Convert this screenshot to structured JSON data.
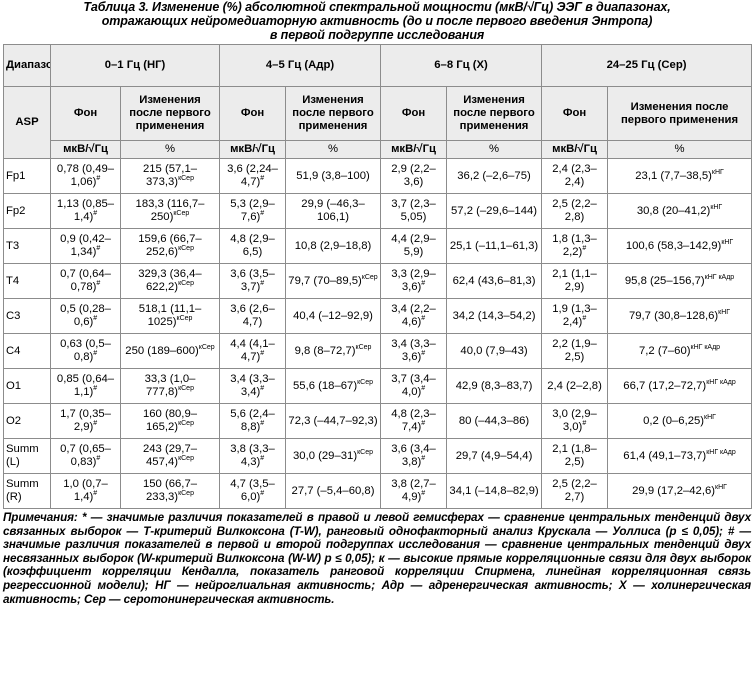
{
  "caption": {
    "line1": "Таблица 3. Изменение (%) абсолютной спектральной мощности (мкВ/√Гц) ЭЭГ в диапазонах,",
    "line2": "отражающих нейромедиаторную активность (до и после первого введения Энтропа)",
    "line3": "в первой подгруппе исследования"
  },
  "header": {
    "range": "Диапазон",
    "asp": "ASP",
    "bands": [
      "0–1 Гц (НГ)",
      "4–5 Гц (Адр)",
      "6–8 Гц (Х)",
      "24–25 Гц (Сер)"
    ],
    "fon": "Фон",
    "change_labels": [
      "Изменения после первого применения",
      "Изменения после первого применения",
      "Изменения после первого применения",
      "Изменения после первого применения"
    ],
    "unit_abs": "мкВ/√Гц",
    "unit_pct": "%"
  },
  "rows": [
    {
      "asp": "Fp1",
      "c": [
        {
          "t": "0,78 (0,49–1,06)",
          "s": "#"
        },
        {
          "t": "215 (57,1–373,3)",
          "s": "кСер"
        },
        {
          "t": "3,6 (2,24–4,7)",
          "s": "#"
        },
        {
          "t": "51,9 (3,8–100)",
          "s": ""
        },
        {
          "t": "2,9 (2,2–3,6)",
          "s": ""
        },
        {
          "t": "36,2 (–2,6–75)",
          "s": ""
        },
        {
          "t": "2,4 (2,3–2,4)",
          "s": ""
        },
        {
          "t": "23,1 (7,7–38,5)",
          "s": "кНГ"
        }
      ]
    },
    {
      "asp": "Fp2",
      "c": [
        {
          "t": "1,13 (0,85–1,4)",
          "s": "#"
        },
        {
          "t": "183,3 (116,7–250)",
          "s": "кСер"
        },
        {
          "t": "5,3 (2,9–7,6)",
          "s": "#"
        },
        {
          "t": "29,9 (–46,3–106,1)",
          "s": ""
        },
        {
          "t": "3,7 (2,3–5,05)",
          "s": ""
        },
        {
          "t": "57,2 (–29,6–144)",
          "s": ""
        },
        {
          "t": "2,5 (2,2–2,8)",
          "s": ""
        },
        {
          "t": "30,8 (20–41,2)",
          "s": "кНГ"
        }
      ]
    },
    {
      "asp": "T3",
      "c": [
        {
          "t": "0,9 (0,42–1,34)",
          "s": "#"
        },
        {
          "t": "159,6 (66,7–252,6)",
          "s": "кСер"
        },
        {
          "t": "4,8 (2,9–6,5)",
          "s": ""
        },
        {
          "t": "10,8 (2,9–18,8)",
          "s": ""
        },
        {
          "t": "4,4 (2,9–5,9)",
          "s": ""
        },
        {
          "t": "25,1 (–11,1–61,3)",
          "s": ""
        },
        {
          "t": "1,8 (1,3–2,2)",
          "s": "#"
        },
        {
          "t": "100,6 (58,3–142,9)",
          "s": "кНГ"
        }
      ]
    },
    {
      "asp": "T4",
      "c": [
        {
          "t": "0,7 (0,64–0,78)",
          "s": "#"
        },
        {
          "t": "329,3 (36,4–622,2)",
          "s": "кСер"
        },
        {
          "t": "3,6 (3,5–3,7)",
          "s": "#"
        },
        {
          "t": "79,7 (70–89,5)",
          "s": "кСер"
        },
        {
          "t": "3,3 (2,9–3,6)",
          "s": "#"
        },
        {
          "t": "62,4 (43,6–81,3)",
          "s": ""
        },
        {
          "t": "2,1 (1,1–2,9)",
          "s": ""
        },
        {
          "t": "95,8 (25–156,7)",
          "s": "кНГ кАдр"
        }
      ]
    },
    {
      "asp": "C3",
      "c": [
        {
          "t": "0,5 (0,28–0,6)",
          "s": "#"
        },
        {
          "t": "518,1 (11,1–1025)",
          "s": "кСер"
        },
        {
          "t": "3,6 (2,6–4,7)",
          "s": ""
        },
        {
          "t": "40,4 (–12–92,9)",
          "s": ""
        },
        {
          "t": "3,4 (2,2–4,6)",
          "s": "#"
        },
        {
          "t": "34,2 (14,3–54,2)",
          "s": ""
        },
        {
          "t": "1,9 (1,3–2,4)",
          "s": "#"
        },
        {
          "t": "79,7 (30,8–128,6)",
          "s": "кНГ"
        }
      ]
    },
    {
      "asp": "C4",
      "c": [
        {
          "t": "0,63 (0,5–0,8)",
          "s": "#"
        },
        {
          "t": "250 (189–600)",
          "s": "кСер"
        },
        {
          "t": "4,4 (4,1–4,7)",
          "s": "#"
        },
        {
          "t": "9,8 (8–72,7)",
          "s": "кСер"
        },
        {
          "t": "3,4 (3,3–3,6)",
          "s": "#"
        },
        {
          "t": "40,0 (7,9–43)",
          "s": ""
        },
        {
          "t": "2,2 (1,9–2,5)",
          "s": ""
        },
        {
          "t": "7,2 (7–60)",
          "s": "кНГ кАдр"
        }
      ]
    },
    {
      "asp": "O1",
      "c": [
        {
          "t": "0,85 (0,64–1,1)",
          "s": "#"
        },
        {
          "t": "33,3 (1,0–777,8)",
          "s": "кСер"
        },
        {
          "t": "3,4 (3,3–3,4)",
          "s": "#"
        },
        {
          "t": "55,6 (18–67)",
          "s": "кСер"
        },
        {
          "t": "3,7 (3,4–4,0)",
          "s": "#"
        },
        {
          "t": "42,9 (8,3–83,7)",
          "s": ""
        },
        {
          "t": "2,4 (2–2,8)",
          "s": ""
        },
        {
          "t": "66,7 (17,2–72,7)",
          "s": "кНГ кАдр"
        }
      ]
    },
    {
      "asp": "O2",
      "c": [
        {
          "t": "1,7 (0,35–2,9)",
          "s": "#"
        },
        {
          "t": "160 (80,9–165,2)",
          "s": "кСер"
        },
        {
          "t": "5,6 (2,4–8,8)",
          "s": "#"
        },
        {
          "t": "72,3 (–44,7–92,3)",
          "s": ""
        },
        {
          "t": "4,8 (2,3–7,4)",
          "s": "#"
        },
        {
          "t": "80 (–44,3–86)",
          "s": ""
        },
        {
          "t": "3,0 (2,9–3,0)",
          "s": "#"
        },
        {
          "t": "0,2 (0–6,25)",
          "s": "кНГ"
        }
      ]
    },
    {
      "asp": "Summ (L)",
      "c": [
        {
          "t": "0,7 (0,65–0,83)",
          "s": "#"
        },
        {
          "t": "243 (29,7–457,4)",
          "s": "кСер"
        },
        {
          "t": "3,8 (3,3–4,3)",
          "s": "#"
        },
        {
          "t": "30,0 (29–31)",
          "s": "кСер"
        },
        {
          "t": "3,6 (3,4–3,8)",
          "s": "#"
        },
        {
          "t": "29,7 (4,9–54,4)",
          "s": ""
        },
        {
          "t": "2,1 (1,8–2,5)",
          "s": ""
        },
        {
          "t": "61,4 (49,1–73,7)",
          "s": "кНГ кАдр"
        }
      ]
    },
    {
      "asp": "Summ (R)",
      "c": [
        {
          "t": "1,0 (0,7–1,4)",
          "s": "#"
        },
        {
          "t": "150 (66,7–233,3)",
          "s": "кСер"
        },
        {
          "t": "4,7 (3,5–6,0)",
          "s": "#"
        },
        {
          "t": "27,7 (–5,4–60,8)",
          "s": ""
        },
        {
          "t": "3,8 (2,7–4,9)",
          "s": "#"
        },
        {
          "t": "34,1 (–14,8–82,9)",
          "s": ""
        },
        {
          "t": "2,5 (2,2–2,7)",
          "s": ""
        },
        {
          "t": "29,9 (17,2–42,6)",
          "s": "кНГ"
        }
      ]
    }
  ],
  "notes": {
    "text": "Примечания: * — значимые различия показателей в правой и левой гемисферах — сравнение центральных тенденций двух связанных выборок — Т-критерий Вилкоксона (T-W), ранговый однофакторный анализ Крускала — Уоллиса (р ≤ 0,05); # — значимые различия показателей в первой и второй подгруппах исследования — сравнение центральных тенденций двух несвязанных выборок (W-критерий Вилкоксона (W-W) р ≤ 0,05); к — высокие прямые корреляционные связи для двух выборок (коэффициент корреляции Кендалла, показатель ранговой корреляции Спирмена, линейная корреляционная связь регрессионной модели); НГ — нейроглиальная активность; Адр — адренергическая активность; Х — холинергическая активность; Сер — серотонинергическая активность."
  }
}
